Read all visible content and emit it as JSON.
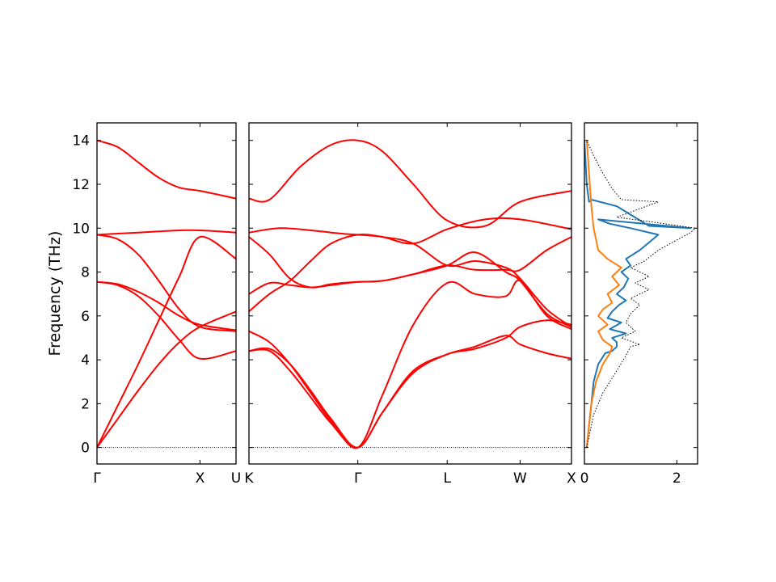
{
  "chart_data": [
    {
      "type": "line",
      "panel": "band-gamma-x-u",
      "ylabel": "Frequency (THz)",
      "ylim": [
        -0.75,
        14.8
      ],
      "y_ticks": [
        0,
        2,
        4,
        6,
        8,
        10,
        12,
        14
      ],
      "x_tick_labels": [
        "Γ",
        "X",
        "U"
      ],
      "x_tick_positions": [
        0,
        1,
        1.35
      ],
      "xlim": [
        0,
        1.35
      ],
      "line_color": "#ff0000",
      "zero_line_color": "#0000cc",
      "series": [
        {
          "x": [
            0,
            0.2,
            0.4,
            0.6,
            0.8,
            1.0,
            1.35
          ],
          "y": [
            14.0,
            13.7,
            13.0,
            12.3,
            11.85,
            11.7,
            11.35
          ]
        },
        {
          "x": [
            0,
            0.2,
            0.4,
            0.6,
            0.8,
            1.0,
            1.35
          ],
          "y": [
            9.7,
            9.75,
            9.8,
            9.85,
            9.9,
            9.9,
            9.8
          ]
        },
        {
          "x": [
            0,
            0.2,
            0.4,
            0.6,
            0.8,
            1.0,
            1.35
          ],
          "y": [
            9.7,
            9.5,
            8.8,
            7.6,
            6.3,
            5.5,
            5.3
          ]
        },
        {
          "x": [
            0,
            0.2,
            0.4,
            0.6,
            0.8,
            1.0,
            1.35
          ],
          "y": [
            7.55,
            7.45,
            7.1,
            6.6,
            6.0,
            5.6,
            5.35
          ]
        },
        {
          "x": [
            0,
            0.2,
            0.4,
            0.6,
            0.8,
            1.0,
            1.35
          ],
          "y": [
            7.55,
            7.4,
            6.9,
            6.0,
            4.9,
            4.05,
            4.4
          ]
        },
        {
          "x": [
            0,
            0.2,
            0.4,
            0.6,
            0.8,
            1.0,
            1.35
          ],
          "y": [
            0,
            1.9,
            3.8,
            5.8,
            7.8,
            9.6,
            8.6
          ]
        },
        {
          "x": [
            0,
            0.2,
            0.4,
            0.6,
            0.8,
            1.0,
            1.35
          ],
          "y": [
            0,
            1.3,
            2.6,
            3.8,
            4.8,
            5.5,
            6.2
          ]
        }
      ]
    },
    {
      "type": "line",
      "panel": "band-k-gamma-l-w-x",
      "ylim": [
        -0.75,
        14.8
      ],
      "x_tick_labels": [
        "K",
        "Γ",
        "L",
        "W",
        "X"
      ],
      "x_tick_positions": [
        0,
        1.06,
        1.93,
        2.64,
        3.14
      ],
      "xlim": [
        0,
        3.14
      ],
      "line_color": "#ff0000",
      "zero_line_color": "#0000cc",
      "series": [
        {
          "x": [
            0,
            0.2,
            0.5,
            0.8,
            1.06,
            1.3,
            1.6,
            1.93,
            2.3,
            2.64,
            3.14
          ],
          "y": [
            11.35,
            11.3,
            12.8,
            13.8,
            14.0,
            13.5,
            12.0,
            10.35,
            10.1,
            11.2,
            11.7
          ]
        },
        {
          "x": [
            0,
            0.3,
            0.6,
            0.9,
            1.06,
            1.3,
            1.6,
            1.93,
            2.3,
            2.64,
            3.14
          ],
          "y": [
            9.8,
            10.0,
            9.9,
            9.75,
            9.7,
            9.6,
            9.3,
            9.95,
            10.4,
            10.4,
            9.95
          ]
        },
        {
          "x": [
            0,
            0.2,
            0.4,
            0.6,
            0.8,
            1.06,
            1.3,
            1.6,
            1.93,
            2.2,
            2.5,
            2.64,
            2.9,
            3.14
          ],
          "y": [
            9.6,
            8.8,
            7.7,
            7.3,
            7.45,
            7.55,
            7.6,
            7.9,
            8.3,
            8.1,
            8.1,
            8.1,
            9.0,
            9.6
          ]
        },
        {
          "x": [
            0,
            0.2,
            0.4,
            0.6,
            0.8,
            1.06,
            1.3,
            1.6,
            1.93,
            2.2,
            2.5,
            2.64,
            2.9,
            3.14
          ],
          "y": [
            6.2,
            7.0,
            7.6,
            8.5,
            9.3,
            9.7,
            9.6,
            9.3,
            8.3,
            8.5,
            8.2,
            7.7,
            6.3,
            5.5
          ]
        },
        {
          "x": [
            0,
            0.2,
            0.4,
            0.6,
            0.8,
            1.06,
            1.3,
            1.6,
            1.93,
            2.2,
            2.5,
            2.64,
            2.9,
            3.14
          ],
          "y": [
            7.0,
            7.5,
            7.4,
            7.3,
            7.4,
            7.55,
            7.6,
            7.9,
            8.3,
            8.9,
            8.0,
            7.6,
            6.1,
            5.5
          ]
        },
        {
          "x": [
            0,
            0.2,
            0.4,
            0.6,
            0.8,
            1.06,
            1.3,
            1.6,
            1.93,
            2.2,
            2.5,
            2.64,
            2.9,
            3.14
          ],
          "y": [
            5.3,
            4.8,
            3.8,
            2.5,
            1.2,
            0,
            2.4,
            5.6,
            7.5,
            7.0,
            6.9,
            7.6,
            6.0,
            5.4
          ]
        },
        {
          "x": [
            0,
            0.2,
            0.4,
            0.6,
            0.8,
            1.06,
            1.3,
            1.6,
            1.93,
            2.2,
            2.5,
            2.64,
            2.9,
            3.14
          ],
          "y": [
            4.4,
            4.5,
            3.8,
            2.6,
            1.3,
            0,
            1.6,
            3.4,
            4.25,
            4.5,
            5.0,
            5.5,
            5.8,
            5.6
          ]
        },
        {
          "x": [
            0,
            0.2,
            0.4,
            0.6,
            0.8,
            1.06,
            1.3,
            1.6,
            1.93,
            2.2,
            2.5,
            2.64,
            2.9,
            3.14
          ],
          "y": [
            4.4,
            4.4,
            3.5,
            2.3,
            1.1,
            0,
            1.6,
            3.5,
            4.25,
            4.6,
            5.1,
            4.7,
            4.3,
            4.05
          ]
        }
      ]
    },
    {
      "type": "line",
      "panel": "dos",
      "xlim": [
        0,
        2.45
      ],
      "x_ticks": [
        0,
        2
      ],
      "ylim": [
        -0.75,
        14.8
      ],
      "series": [
        {
          "color": "#1f77b4",
          "style": "solid",
          "x": [
            0.05,
            0.1,
            0.15,
            0.2,
            0.3,
            0.45,
            0.6,
            0.7,
            0.7,
            0.6,
            0.9,
            0.55,
            0.8,
            0.5,
            0.6,
            0.75,
            0.9,
            0.7,
            0.85,
            0.95,
            0.8,
            1.0,
            0.9,
            1.2,
            1.6,
            1.0,
            0.55,
            0.3,
            2.3,
            1.4,
            0.7,
            0.15,
            0.1,
            0.05,
            0.0
          ],
          "y": [
            0,
            1.0,
            2.0,
            3.0,
            3.8,
            4.3,
            4.4,
            4.6,
            4.8,
            5.0,
            5.2,
            5.4,
            5.7,
            5.9,
            6.2,
            6.5,
            6.7,
            7.0,
            7.3,
            7.7,
            8.0,
            8.3,
            8.6,
            9.0,
            9.7,
            10.0,
            10.2,
            10.4,
            10.0,
            10.1,
            11.0,
            11.3,
            11.2,
            12.0,
            14.0
          ]
        },
        {
          "color": "#ff7f0e",
          "style": "solid",
          "x": [
            0.05,
            0.1,
            0.15,
            0.25,
            0.4,
            0.55,
            0.6,
            0.4,
            0.3,
            0.5,
            0.3,
            0.4,
            0.6,
            0.5,
            0.75,
            0.6,
            0.8,
            0.5,
            0.3,
            0.2,
            0.15,
            0.1,
            0.05
          ],
          "y": [
            0,
            1.0,
            2.0,
            3.0,
            3.8,
            4.3,
            4.6,
            4.9,
            5.3,
            5.6,
            6.0,
            6.3,
            6.6,
            7.0,
            7.4,
            7.8,
            8.2,
            8.6,
            9.0,
            10.0,
            11.0,
            12.5,
            14.0
          ]
        },
        {
          "color": "#000000",
          "style": "dotted",
          "x": [
            0.05,
            0.2,
            0.4,
            0.7,
            0.9,
            1.0,
            1.2,
            0.8,
            1.1,
            0.9,
            1.0,
            1.2,
            1.0,
            1.4,
            1.1,
            1.4,
            1.2,
            1.0,
            1.3,
            1.6,
            2.3,
            2.4,
            1.4,
            0.7,
            1.6,
            0.8,
            0.6,
            0.4,
            0.2,
            0.05
          ],
          "y": [
            0,
            1.5,
            2.5,
            3.5,
            4.2,
            4.6,
            4.7,
            5.0,
            5.3,
            5.7,
            6.1,
            6.5,
            6.8,
            7.2,
            7.5,
            7.8,
            8.0,
            8.2,
            8.5,
            9.0,
            9.8,
            10.0,
            10.3,
            10.5,
            11.2,
            11.3,
            11.8,
            12.5,
            13.3,
            14.0
          ]
        }
      ]
    }
  ]
}
